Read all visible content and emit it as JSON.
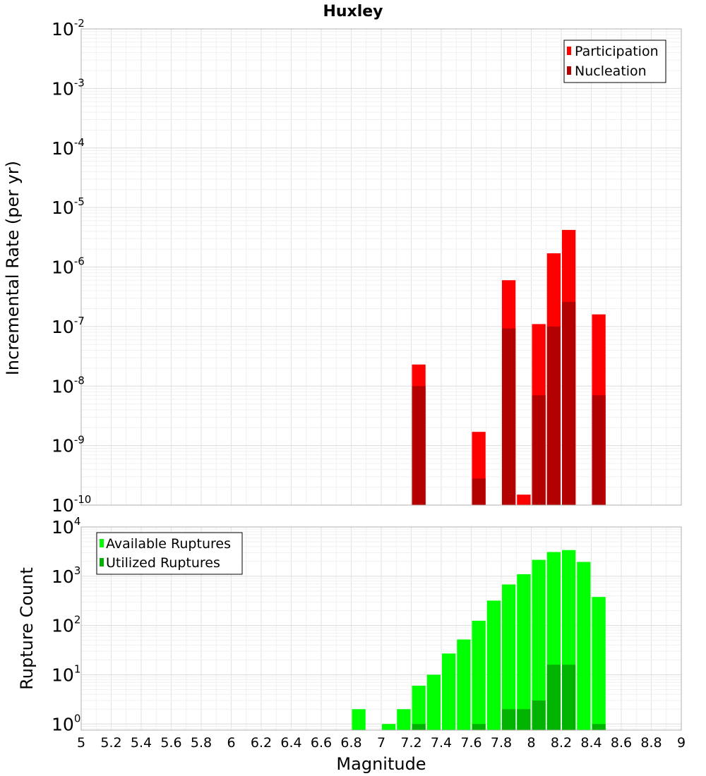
{
  "chart_data": {
    "type": "bar",
    "title": "Huxley",
    "xlabel": "Magnitude",
    "xlim": [
      5,
      9
    ],
    "x_ticks": [
      "5",
      "5.2",
      "5.4",
      "5.6",
      "5.8",
      "6",
      "6.2",
      "6.4",
      "6.6",
      "6.8",
      "7",
      "7.2",
      "7.4",
      "7.6",
      "7.8",
      "8",
      "8.2",
      "8.4",
      "8.6",
      "8.8",
      "9"
    ],
    "bin_width": 0.1,
    "grid": true,
    "panels": [
      {
        "id": "rates",
        "ylabel": "Incremental Rate (per yr)",
        "yscale": "log",
        "ylim": [
          1e-10,
          0.01
        ],
        "y_tick_exponents": [
          "-2",
          "-3",
          "-4",
          "-5",
          "-6",
          "-7",
          "-8",
          "-9",
          "-10"
        ],
        "legend_position": "top-right",
        "colors": {
          "Participation": "#ff0000",
          "Nucleation": "#b30000"
        },
        "series": [
          {
            "name": "Participation",
            "x": [
              7.25,
              7.65,
              7.85,
              7.95,
              8.05,
              8.15,
              8.25,
              8.45
            ],
            "values": [
              2.3e-08,
              1.7e-09,
              6e-07,
              1.5e-10,
              1.1e-07,
              1.7e-06,
              4.2e-06,
              1.6e-07
            ]
          },
          {
            "name": "Nucleation",
            "x": [
              7.25,
              7.65,
              7.85,
              8.05,
              8.15,
              8.25,
              8.45
            ],
            "values": [
              1e-08,
              2.8e-10,
              9.3e-08,
              7e-09,
              1e-07,
              2.6e-07,
              7e-09
            ]
          }
        ]
      },
      {
        "id": "counts",
        "ylabel": "Rupture Count",
        "yscale": "log",
        "ylim": [
          0.75,
          10000
        ],
        "y_tick_exponents": [
          "4",
          "3",
          "2",
          "1",
          "0"
        ],
        "legend_position": "top-left",
        "colors": {
          "Available Ruptures": "#00ff00",
          "Utilized Ruptures": "#00b300"
        },
        "series": [
          {
            "name": "Available Ruptures",
            "x": [
              6.85,
              7.05,
              7.15,
              7.25,
              7.35,
              7.45,
              7.55,
              7.65,
              7.75,
              7.85,
              7.95,
              8.05,
              8.15,
              8.25,
              8.35,
              8.45
            ],
            "values": [
              2,
              1,
              2,
              6,
              10,
              27,
              52,
              125,
              320,
              680,
              1100,
              2150,
              3100,
              3400,
              1950,
              380
            ]
          },
          {
            "name": "Utilized Ruptures",
            "x": [
              7.25,
              7.65,
              7.85,
              7.95,
              8.05,
              8.15,
              8.25,
              8.45
            ],
            "values": [
              1,
              1,
              2,
              2,
              3,
              16,
              16,
              1
            ]
          }
        ]
      }
    ]
  }
}
